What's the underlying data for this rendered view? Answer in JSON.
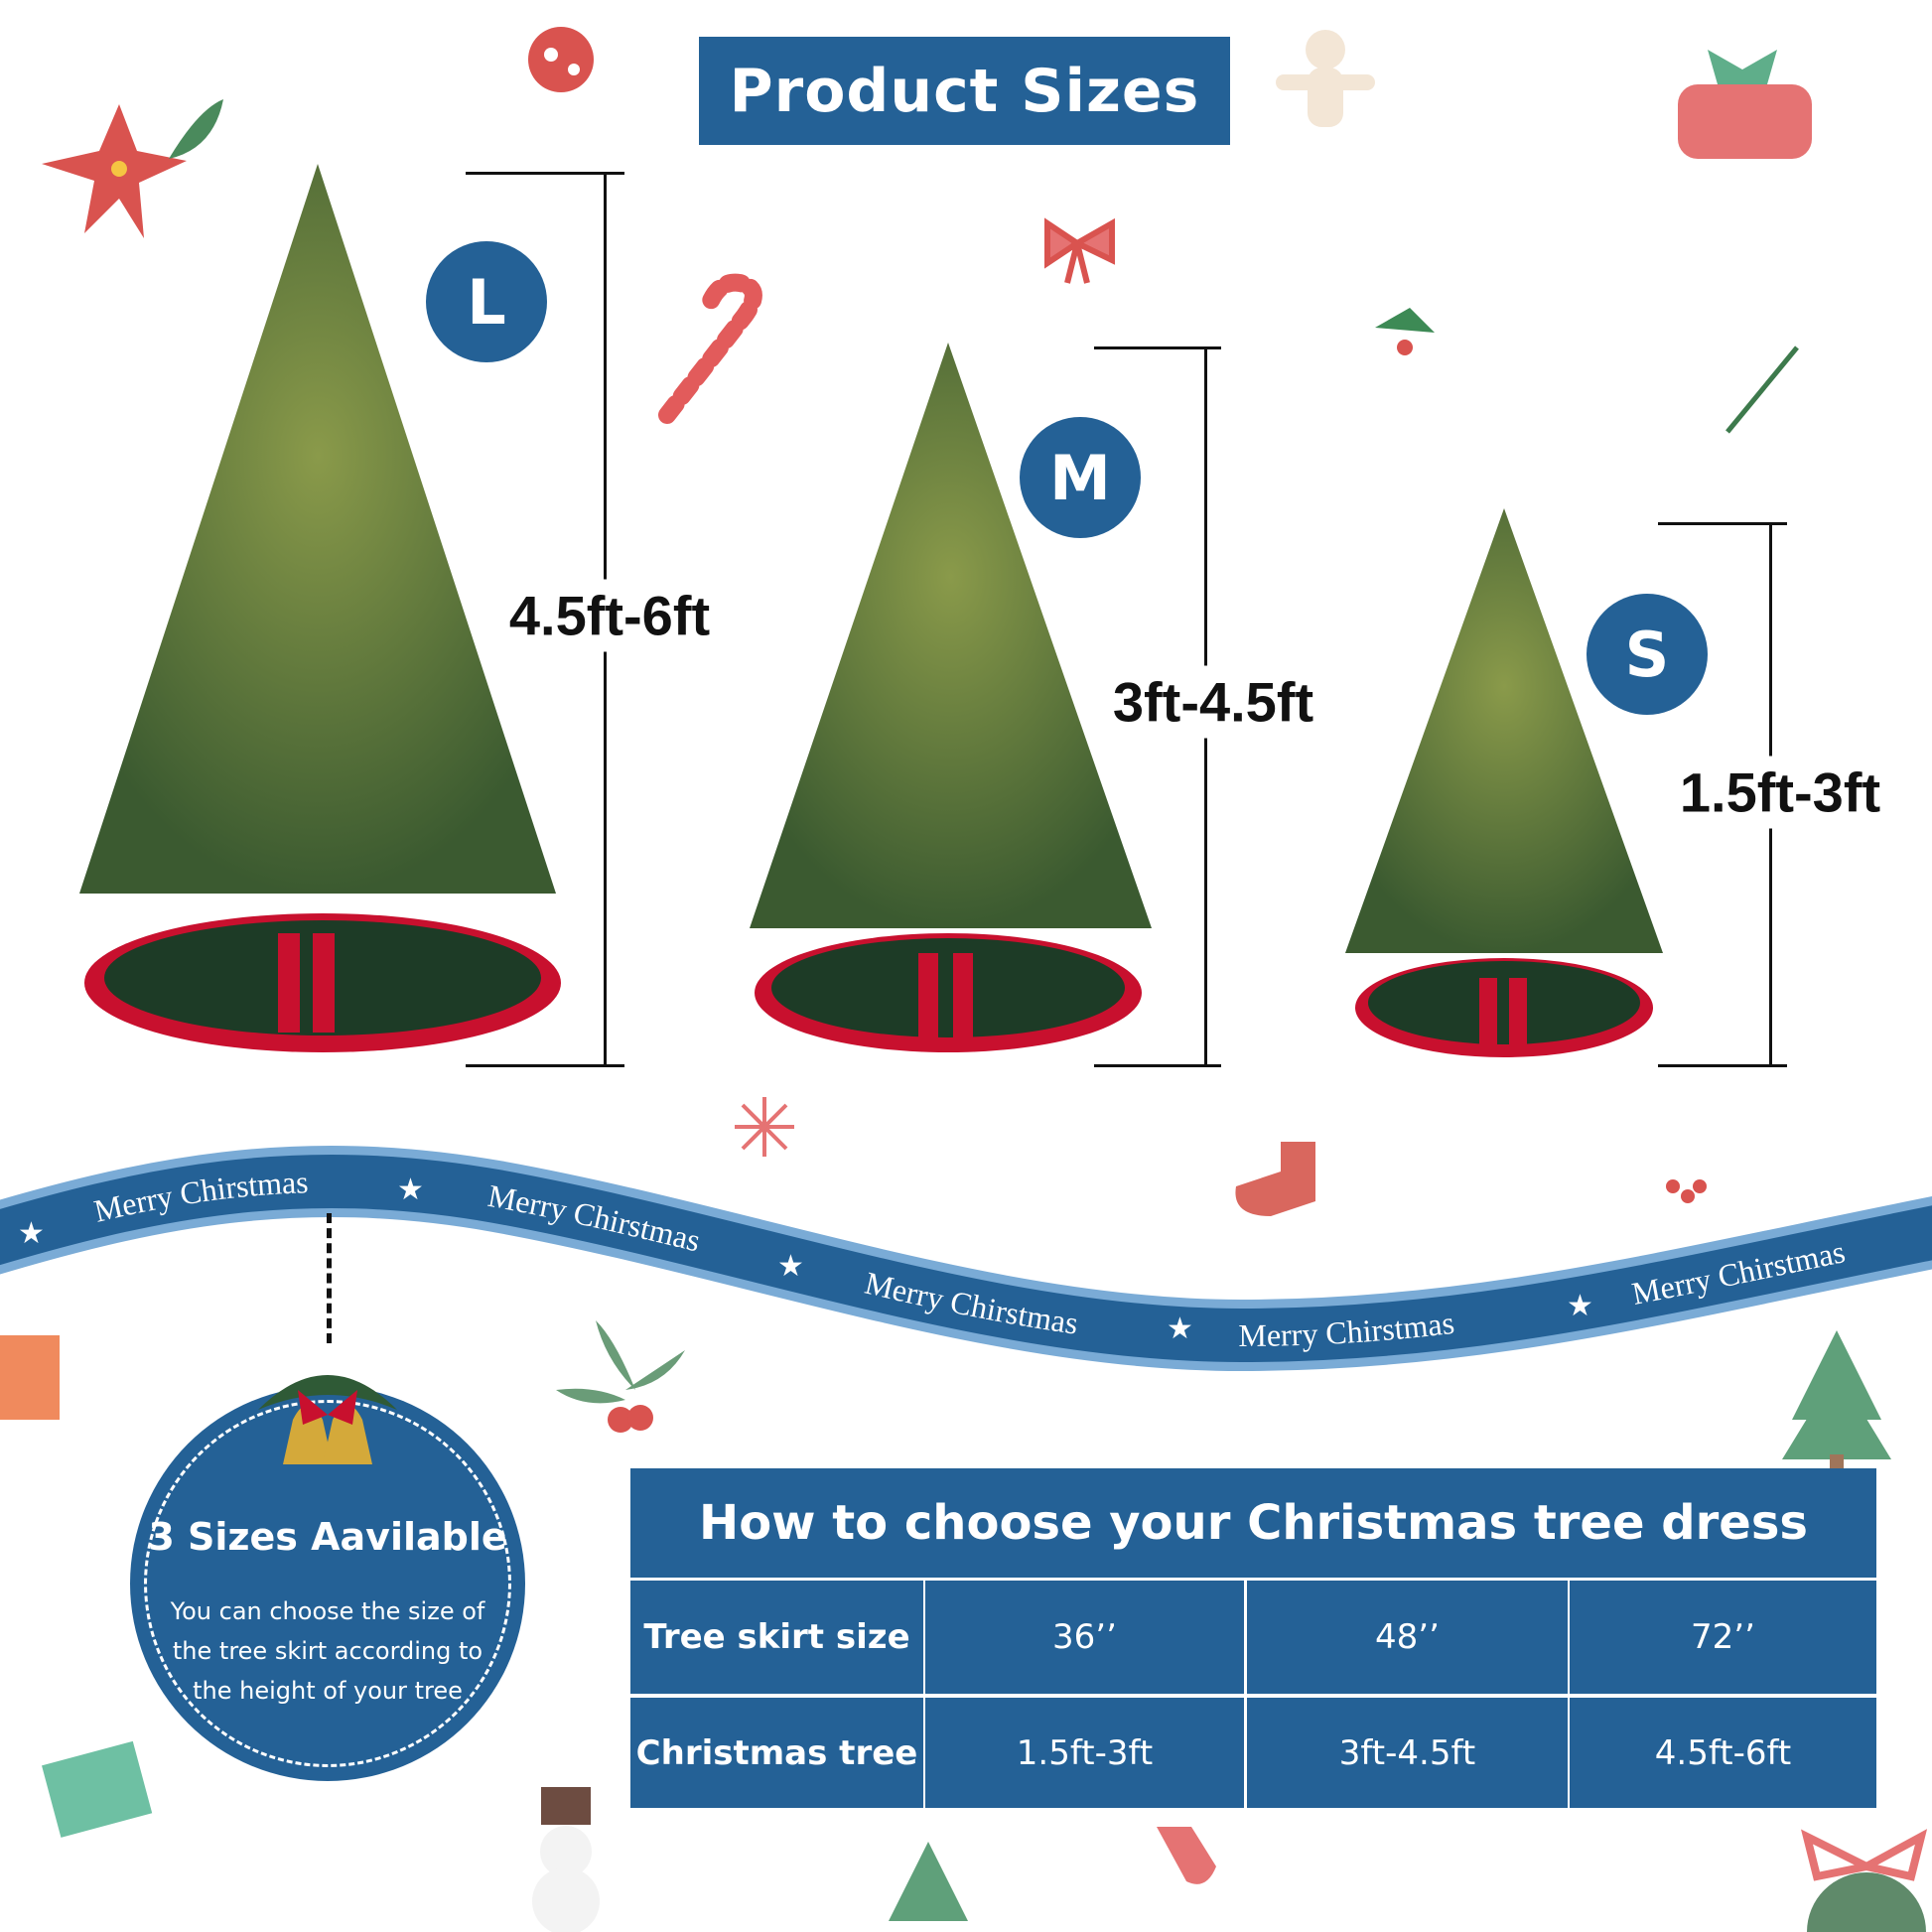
{
  "title": "Product Sizes",
  "sizes": [
    {
      "badge": "L",
      "range": "4.5ft-6ft"
    },
    {
      "badge": "M",
      "range": "3ft-4.5ft"
    },
    {
      "badge": "S",
      "range": "1.5ft-3ft"
    }
  ],
  "banner": {
    "text": "Merry Chirstmas",
    "repeats": [
      "Merry Chirstmas",
      "Merry Chirstmas",
      "Merry Chirstmas",
      "Merry Chirstmas",
      "Merry Chirstmas"
    ]
  },
  "info": {
    "title": "3 Sizes Aavilable",
    "text": "You can choose the size of the tree skirt according to the height of your tree"
  },
  "table": {
    "title": "How to choose your Christmas tree dress",
    "rows": [
      {
        "label": "Tree skirt size",
        "values": [
          "36’’",
          "48’’",
          "72’’"
        ]
      },
      {
        "label": "Christmas tree",
        "values": [
          "1.5ft-3ft",
          "3ft-4.5ft",
          "4.5ft-6ft"
        ]
      }
    ]
  },
  "colors": {
    "brand_blue": "#246196",
    "banner_light": "#7aabd6",
    "skirt_green": "#1d3b26",
    "skirt_red": "#c8102e"
  }
}
